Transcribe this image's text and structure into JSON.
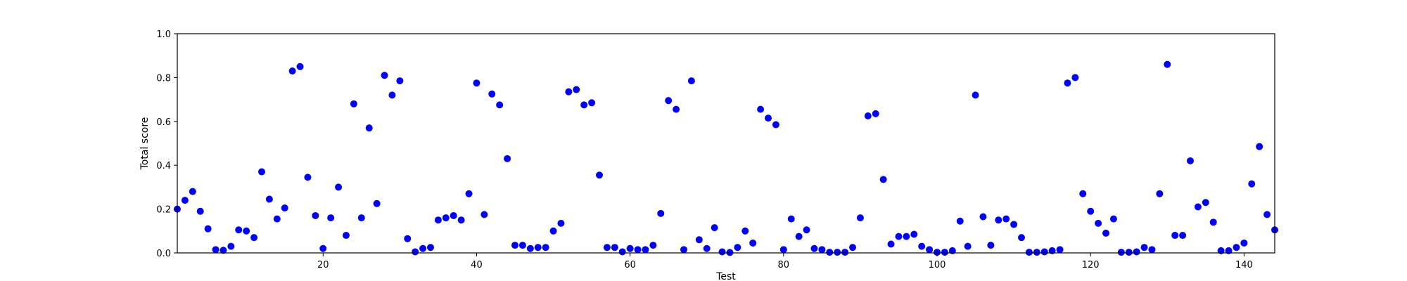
{
  "chart_data": {
    "type": "scatter",
    "title": "",
    "xlabel": "Test",
    "ylabel": "Total score",
    "xlim": [
      1,
      144
    ],
    "ylim": [
      0.0,
      1.0
    ],
    "xticks": [
      20,
      40,
      60,
      80,
      100,
      120,
      140
    ],
    "yticks": [
      0.0,
      0.2,
      0.4,
      0.6,
      0.8,
      1.0
    ],
    "xtick_labels": [
      "20",
      "40",
      "60",
      "80",
      "100",
      "120",
      "140"
    ],
    "ytick_labels": [
      "0.0",
      "0.2",
      "0.4",
      "0.6",
      "0.8",
      "1.0"
    ],
    "grid": false,
    "marker_color": "#0000ff",
    "series": [
      {
        "x": [
          1,
          2,
          3,
          4,
          5,
          6,
          7,
          8,
          9,
          10,
          11,
          12,
          13,
          14,
          15,
          16,
          17,
          18,
          19,
          20,
          21,
          22,
          23,
          24,
          25,
          26,
          27,
          28,
          29,
          30,
          31,
          32,
          33,
          34,
          35,
          36,
          37,
          38,
          39,
          40,
          41,
          42,
          43,
          44,
          45,
          46,
          47,
          48,
          49,
          50,
          51,
          52,
          53,
          54,
          55,
          56,
          57,
          58,
          59,
          60,
          61,
          62,
          63,
          64,
          65,
          66,
          67,
          68,
          69,
          70,
          71,
          72,
          73,
          74,
          75,
          76,
          77,
          78,
          79,
          80,
          81,
          82,
          83,
          84,
          85,
          86,
          87,
          88,
          89,
          90,
          91,
          92,
          93,
          94,
          95,
          96,
          97,
          98,
          99,
          100,
          101,
          102,
          103,
          104,
          105,
          106,
          107,
          108,
          109,
          110,
          111,
          112,
          113,
          114,
          115,
          116,
          117,
          118,
          119,
          120,
          121,
          122,
          123,
          124,
          125,
          126,
          127,
          128,
          129,
          130,
          131,
          132,
          133,
          134,
          135,
          136,
          137,
          138,
          139,
          140,
          141,
          142,
          143,
          144
        ],
        "y": [
          0.2,
          0.24,
          0.28,
          0.19,
          0.11,
          0.015,
          0.012,
          0.03,
          0.105,
          0.1,
          0.07,
          0.37,
          0.245,
          0.155,
          0.205,
          0.83,
          0.85,
          0.345,
          0.17,
          0.02,
          0.16,
          0.3,
          0.08,
          0.68,
          0.16,
          0.57,
          0.225,
          0.81,
          0.72,
          0.785,
          0.065,
          0.005,
          0.02,
          0.025,
          0.15,
          0.16,
          0.17,
          0.15,
          0.27,
          0.775,
          0.175,
          0.725,
          0.675,
          0.43,
          0.035,
          0.035,
          0.02,
          0.025,
          0.025,
          0.1,
          0.135,
          0.735,
          0.745,
          0.675,
          0.685,
          0.355,
          0.025,
          0.025,
          0.005,
          0.02,
          0.015,
          0.015,
          0.035,
          0.18,
          0.695,
          0.655,
          0.015,
          0.785,
          0.06,
          0.02,
          0.115,
          0.005,
          0.002,
          0.025,
          0.1,
          0.045,
          0.655,
          0.615,
          0.585,
          0.015,
          0.155,
          0.075,
          0.105,
          0.02,
          0.015,
          0.003,
          0.003,
          0.003,
          0.025,
          0.16,
          0.625,
          0.635,
          0.335,
          0.04,
          0.075,
          0.075,
          0.085,
          0.03,
          0.015,
          0.003,
          0.003,
          0.01,
          0.145,
          0.03,
          0.72,
          0.165,
          0.035,
          0.15,
          0.155,
          0.13,
          0.07,
          0.003,
          0.003,
          0.005,
          0.01,
          0.015,
          0.775,
          0.8,
          0.27,
          0.19,
          0.135,
          0.09,
          0.155,
          0.003,
          0.003,
          0.005,
          0.025,
          0.015,
          0.27,
          0.86,
          0.08,
          0.08,
          0.42,
          0.21,
          0.23,
          0.14,
          0.01,
          0.01,
          0.025,
          0.045,
          0.315,
          0.485,
          0.175,
          0.105
        ]
      }
    ]
  }
}
